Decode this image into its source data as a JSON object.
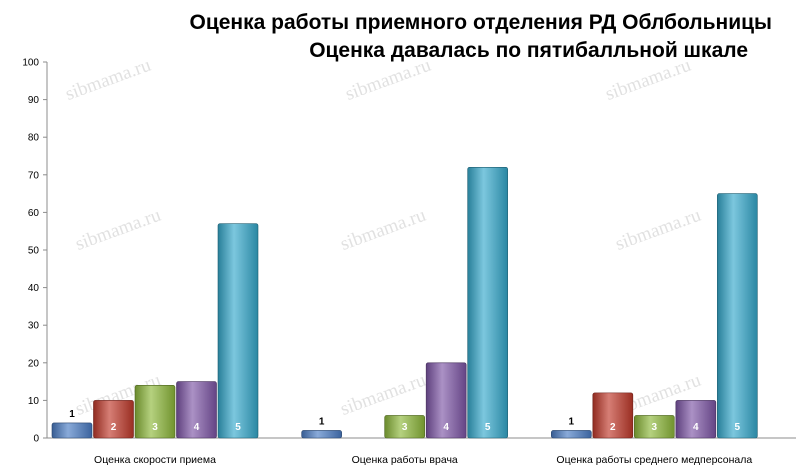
{
  "chart_data": {
    "type": "bar",
    "title": "Оценка работы приемного отделения РД Облбольницы",
    "subtitle": "Оценка давалась по пятибалльной шкале",
    "categories": [
      "Оценка скорости приема",
      "Оценка работы врача",
      "Оценка работы среднего медперсонала"
    ],
    "series": [
      {
        "name": "1",
        "values": [
          4,
          2,
          2
        ]
      },
      {
        "name": "2",
        "values": [
          10,
          0,
          12
        ]
      },
      {
        "name": "3",
        "values": [
          14,
          6,
          6
        ]
      },
      {
        "name": "4",
        "values": [
          15,
          20,
          10
        ]
      },
      {
        "name": "5",
        "values": [
          57,
          72,
          65
        ]
      }
    ],
    "ylim": [
      0,
      100
    ],
    "yticks": [
      0,
      10,
      20,
      30,
      40,
      50,
      60,
      70,
      80,
      90,
      100
    ],
    "grid": false,
    "legend": "none",
    "colors": [
      "#4a7cc4",
      "#c0392b",
      "#8db83a",
      "#7d55a6",
      "#35a9cc"
    ],
    "label_colors": [
      "#000000",
      "#ffffff",
      "#ffffff",
      "#ffffff",
      "#ffffff"
    ]
  },
  "watermark": "sibmama.ru"
}
